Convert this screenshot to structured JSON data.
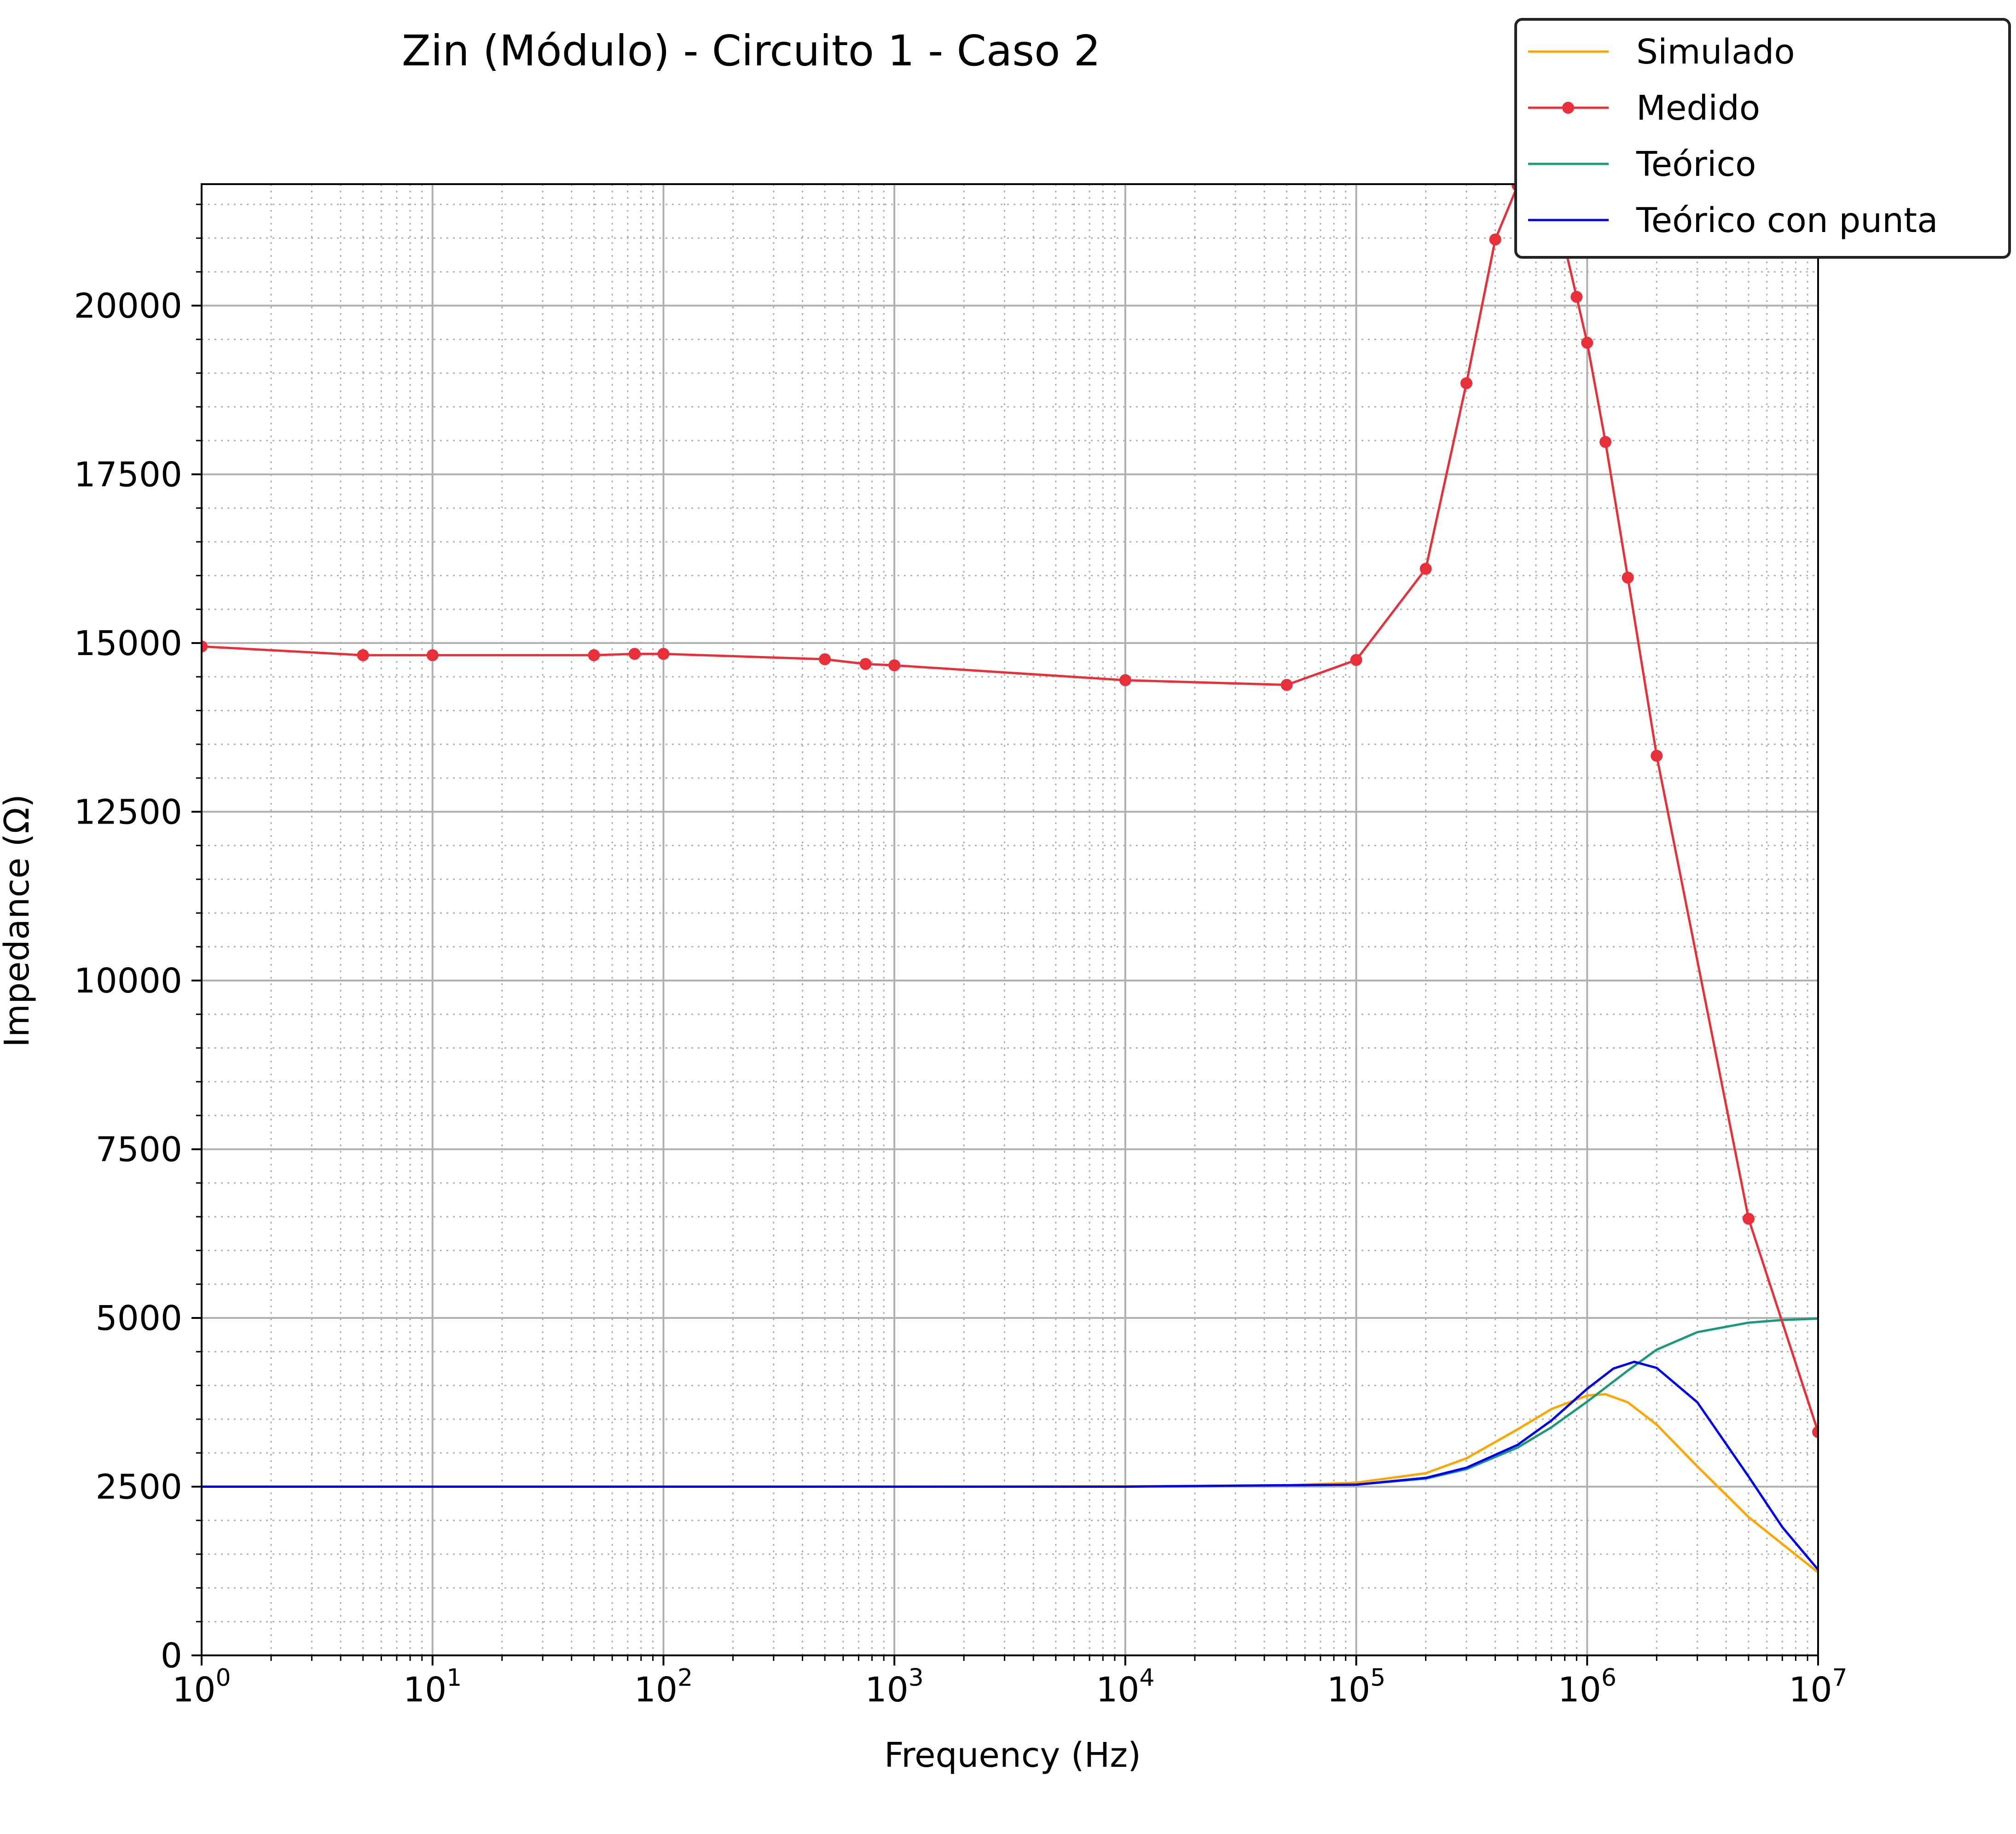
{
  "chart_data": {
    "type": "line",
    "title": "Zin (Módulo) - Circuito 1 - Caso 2",
    "xlabel": "Frequency (Hz)",
    "ylabel": "Impedance (Ω)",
    "x_scale": "log",
    "xlim": [
      1,
      10000000
    ],
    "ylim": [
      0,
      21800
    ],
    "grid": {
      "major": true,
      "minor": true
    },
    "legend_position": "top-right",
    "x_ticks": [
      {
        "base": "10",
        "exp": "0"
      },
      {
        "base": "10",
        "exp": "1"
      },
      {
        "base": "10",
        "exp": "2"
      },
      {
        "base": "10",
        "exp": "3"
      },
      {
        "base": "10",
        "exp": "4"
      },
      {
        "base": "10",
        "exp": "5"
      },
      {
        "base": "10",
        "exp": "6"
      },
      {
        "base": "10",
        "exp": "7"
      }
    ],
    "y_ticks": [
      "0",
      "2500",
      "5000",
      "7500",
      "10000",
      "12500",
      "15000",
      "17500",
      "20000"
    ],
    "series": [
      {
        "name": "Simulado",
        "color": "#FFA500",
        "markers": false,
        "x": [
          1,
          1000,
          10000,
          50000,
          100000,
          200000,
          300000,
          500000,
          700000,
          1000000,
          1200000,
          1500000,
          2000000,
          3000000,
          5000000,
          7000000,
          10000000
        ],
        "y": [
          2500,
          2500,
          2505,
          2520,
          2560,
          2700,
          2920,
          3350,
          3650,
          3850,
          3870,
          3750,
          3420,
          2800,
          2050,
          1650,
          1230
        ]
      },
      {
        "name": "Medido",
        "color": "#E8303A",
        "markers": true,
        "x": [
          1,
          5,
          10,
          50,
          75,
          100,
          500,
          750,
          1000,
          10000,
          50000,
          100000,
          200000,
          300000,
          400000,
          500000,
          600000,
          700000,
          800000,
          900000,
          1000000,
          1200000,
          1500000,
          2000000,
          5000000,
          10000000
        ],
        "y": [
          14950,
          14820,
          14820,
          14820,
          14840,
          14840,
          14760,
          14690,
          14670,
          14450,
          14380,
          14750,
          16100,
          18850,
          20980,
          21780,
          21750,
          21480,
          20880,
          20130,
          19450,
          17980,
          15970,
          13330,
          6470,
          3310
        ]
      },
      {
        "name": "Teórico",
        "color": "#1A9A78",
        "markers": false,
        "x": [
          1,
          10000,
          100000,
          200000,
          300000,
          500000,
          700000,
          1000000,
          1500000,
          2000000,
          3000000,
          5000000,
          7000000,
          10000000
        ],
        "y": [
          2500,
          2500,
          2530,
          2620,
          2760,
          3080,
          3380,
          3760,
          4220,
          4530,
          4790,
          4930,
          4970,
          4990
        ]
      },
      {
        "name": "Teórico con punta",
        "color": "#0000EE",
        "markers": false,
        "x": [
          1,
          10000,
          100000,
          200000,
          300000,
          500000,
          700000,
          1000000,
          1300000,
          1600000,
          2000000,
          3000000,
          5000000,
          7000000,
          10000000
        ],
        "y": [
          2500,
          2500,
          2530,
          2630,
          2780,
          3120,
          3480,
          3950,
          4250,
          4350,
          4260,
          3750,
          2650,
          1900,
          1270
        ]
      }
    ]
  }
}
